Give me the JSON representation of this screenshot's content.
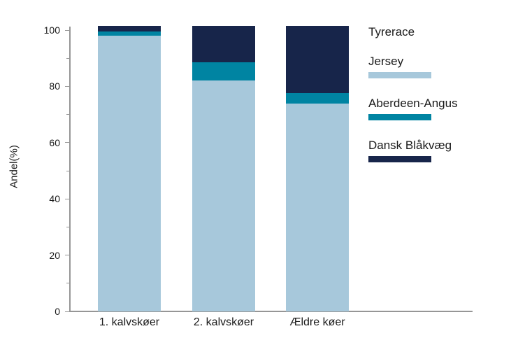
{
  "chart_data": {
    "type": "bar",
    "stacked": true,
    "title": "",
    "ylabel": "Andel(%)",
    "xlabel": "",
    "categories": [
      "1. kalvskøer",
      "2. kalvskøer",
      "Ældre køer"
    ],
    "series": [
      {
        "name": "Jersey",
        "color": "#A7C8DB",
        "values": [
          98,
          82,
          74
        ]
      },
      {
        "name": "Aberdeen-Angus",
        "color": "#0084A2",
        "values": [
          1.5,
          6.5,
          3.5
        ]
      },
      {
        "name": "Dansk Blåkvæg",
        "color": "#17254A",
        "values": [
          2,
          13,
          24
        ]
      }
    ],
    "yticks": [
      0,
      20,
      40,
      60,
      80,
      100
    ],
    "minor_yticks": [
      10,
      30,
      50,
      70,
      90
    ],
    "ylim": [
      0,
      103
    ],
    "grid": false,
    "legend_title": "Tyrerace",
    "legend_position": "top-right"
  },
  "colors": {
    "axis": "#969696",
    "text": "#1a1a1a",
    "background": "#ffffff"
  }
}
